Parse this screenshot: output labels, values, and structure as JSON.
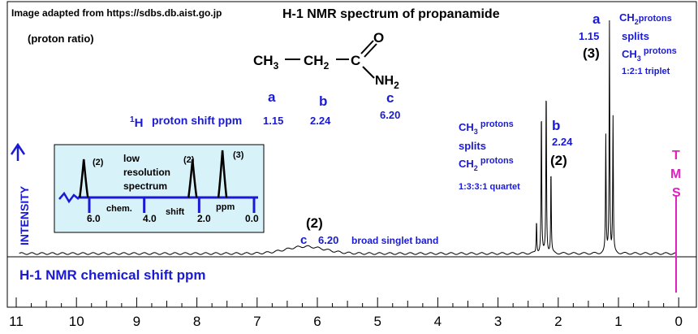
{
  "source_credit": "Image adapted from https://sdbs.db.aist.go.jp",
  "title": "H-1 NMR spectrum of propanamide",
  "proton_ratio_note": "(proton ratio)",
  "structure": {
    "ch3": "CH",
    "ch3_sub": "3",
    "ch2": "CH",
    "ch2_sub": "2",
    "c": "C",
    "o": "O",
    "nh2": "NH",
    "nh2_sub": "2"
  },
  "shift_table": {
    "prefix_sup": "1",
    "prefix": "H",
    "label": "proton shift ppm",
    "a_label": "a",
    "a_value": "1.15",
    "b_label": "b",
    "b_value": "2.24",
    "c_label": "c",
    "c_value": "6.20"
  },
  "inset": {
    "text_line1": "low",
    "text_line2": "resolution",
    "text_line3": "spectrum",
    "axis_words": [
      "chem.",
      "shift",
      "ppm"
    ],
    "tick_labels": [
      "6.0",
      "4.0",
      "2.0",
      "0.0"
    ],
    "peak_labels": [
      "(2)",
      "(2)",
      "(3)"
    ]
  },
  "annotations": {
    "intensity": "INTENSITY",
    "a_group": {
      "label": "a",
      "shift": "1.15",
      "ratio": "(3)",
      "note1": "CH",
      "note1_sub": "2",
      "note1_tail": "protons",
      "note2": "splits",
      "note3": "CH",
      "note3_sub": "3",
      "note3_tail": " protons",
      "pattern": "1:2:1 triplet"
    },
    "b_group": {
      "label": "b",
      "shift": "2.24",
      "ratio": "(2)",
      "note1": "CH",
      "note1_sub": "3",
      "note1_tail": " protons",
      "note2": "splits",
      "note3": "CH",
      "note3_sub": "2",
      "note3_tail": " protons",
      "pattern": "1:3:3:1 quartet"
    },
    "c_group": {
      "ratio": "(2)",
      "label": "c",
      "shift": "6.20",
      "description": "broad singlet band"
    },
    "tms": [
      "T",
      "M",
      "S"
    ],
    "axis_title": "H-1 NMR chemical shift  ppm"
  },
  "colors": {
    "blue": "#1a1ad6",
    "black": "#000000",
    "magenta": "#e020c0",
    "inset_fill": "#d8f2fa"
  },
  "chart_data": {
    "type": "line",
    "xlabel": "H-1 NMR chemical shift  ppm",
    "ylabel": "INTENSITY",
    "xlim": [
      11,
      0
    ],
    "x_ticks": [
      11,
      10,
      9,
      8,
      7,
      6,
      5,
      4,
      3,
      2,
      1,
      0
    ],
    "peaks": [
      {
        "label": "a",
        "shift": 1.15,
        "proton_ratio": 3,
        "multiplicity": "triplet",
        "lines": [
          1.09,
          1.15,
          1.21
        ],
        "rel_heights": [
          0.58,
          1.0,
          0.5
        ]
      },
      {
        "label": "b",
        "shift": 2.24,
        "proton_ratio": 2,
        "multiplicity": "quartet",
        "lines": [
          2.12,
          2.2,
          2.28,
          2.36
        ],
        "rel_heights": [
          0.36,
          0.72,
          0.62,
          0.14
        ]
      },
      {
        "label": "c",
        "shift": 6.2,
        "proton_ratio": 2,
        "multiplicity": "broad singlet",
        "rel_height": 0.03
      },
      {
        "label": "TMS",
        "shift": 0.0,
        "proton_ratio": null,
        "multiplicity": "reference",
        "rel_height": 0.0
      }
    ],
    "inset_low_resolution": {
      "xlim": [
        6.0,
        0.0
      ],
      "peaks": [
        {
          "shift": 6.2,
          "ratio": 2
        },
        {
          "shift": 2.24,
          "ratio": 2
        },
        {
          "shift": 1.15,
          "ratio": 3
        }
      ]
    }
  }
}
